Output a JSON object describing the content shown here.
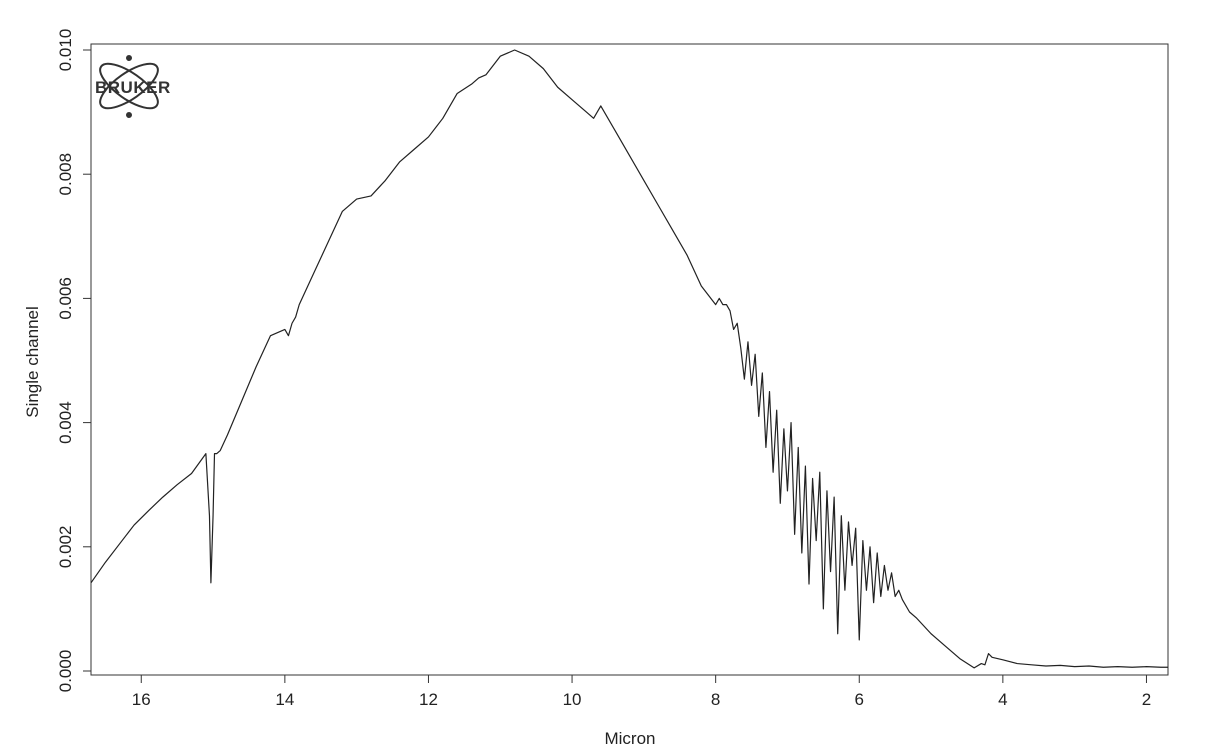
{
  "logo": {
    "text": "BRUKER"
  },
  "chart_data": {
    "type": "line",
    "title": "",
    "xlabel": "Micron",
    "ylabel": "Single channel",
    "xlim": [
      16.7,
      1.7
    ],
    "ylim": [
      0.0,
      0.01
    ],
    "x_reversed": true,
    "x_ticks": [
      16,
      14,
      12,
      10,
      8,
      6,
      4,
      2
    ],
    "x_tick_labels": [
      "16",
      "14",
      "12",
      "10",
      "8",
      "6",
      "4",
      "2"
    ],
    "y_ticks": [
      0.0,
      0.002,
      0.004,
      0.006,
      0.008,
      0.01
    ],
    "y_tick_labels": [
      "0.000",
      "0.002",
      "0.004",
      "0.006",
      "0.008",
      "0.010"
    ],
    "grid": false,
    "legend": "none",
    "line_color": "#222222",
    "series": [
      {
        "x": [
          16.7,
          16.5,
          16.3,
          16.1,
          15.9,
          15.7,
          15.5,
          15.3,
          15.1,
          15.05,
          15.03,
          15.0,
          14.98,
          14.95,
          14.9,
          14.8,
          14.6,
          14.4,
          14.2,
          14.0,
          13.95,
          13.9,
          13.85,
          13.8,
          13.6,
          13.4,
          13.2,
          13.0,
          12.8,
          12.6,
          12.4,
          12.2,
          12.0,
          11.8,
          11.6,
          11.4,
          11.3,
          11.2,
          11.0,
          10.8,
          10.6,
          10.4,
          10.2,
          10.0,
          9.8,
          9.7,
          9.6,
          9.4,
          9.2,
          9.0,
          8.8,
          8.6,
          8.4,
          8.2,
          8.0,
          7.95,
          7.9,
          7.85,
          7.8,
          7.75,
          7.7,
          7.65,
          7.6,
          7.55,
          7.5,
          7.45,
          7.4,
          7.35,
          7.3,
          7.25,
          7.2,
          7.15,
          7.1,
          7.05,
          7.0,
          6.95,
          6.9,
          6.85,
          6.8,
          6.75,
          6.7,
          6.65,
          6.6,
          6.55,
          6.5,
          6.45,
          6.4,
          6.35,
          6.3,
          6.25,
          6.2,
          6.15,
          6.1,
          6.05,
          6.0,
          5.95,
          5.9,
          5.85,
          5.8,
          5.75,
          5.7,
          5.65,
          5.6,
          5.55,
          5.5,
          5.45,
          5.4,
          5.3,
          5.2,
          5.0,
          4.8,
          4.6,
          4.4,
          4.3,
          4.25,
          4.2,
          4.15,
          4.0,
          3.8,
          3.6,
          3.4,
          3.2,
          3.0,
          2.8,
          2.6,
          2.4,
          2.2,
          2.0,
          1.8,
          1.7
        ],
        "y": [
          0.00142,
          0.00175,
          0.00205,
          0.00235,
          0.00258,
          0.0028,
          0.003,
          0.00318,
          0.0035,
          0.0025,
          0.00142,
          0.0025,
          0.0035,
          0.0035,
          0.00355,
          0.0038,
          0.00435,
          0.0049,
          0.0054,
          0.0055,
          0.0054,
          0.0056,
          0.0057,
          0.0059,
          0.0064,
          0.0069,
          0.0074,
          0.0076,
          0.00765,
          0.0079,
          0.0082,
          0.0084,
          0.0086,
          0.0089,
          0.0093,
          0.00945,
          0.00955,
          0.0096,
          0.0099,
          0.01,
          0.0099,
          0.0097,
          0.0094,
          0.0092,
          0.009,
          0.0089,
          0.0091,
          0.0087,
          0.0083,
          0.0079,
          0.0075,
          0.0071,
          0.0067,
          0.0062,
          0.0059,
          0.006,
          0.0059,
          0.0059,
          0.0058,
          0.0055,
          0.0056,
          0.0052,
          0.0047,
          0.0053,
          0.0046,
          0.0051,
          0.0041,
          0.0048,
          0.0036,
          0.0045,
          0.0032,
          0.0042,
          0.0027,
          0.0039,
          0.0029,
          0.004,
          0.0022,
          0.0036,
          0.0019,
          0.0033,
          0.0014,
          0.0031,
          0.0021,
          0.0032,
          0.001,
          0.0029,
          0.0016,
          0.0028,
          0.0006,
          0.0025,
          0.0013,
          0.0024,
          0.0017,
          0.0023,
          0.0005,
          0.0021,
          0.0013,
          0.002,
          0.0011,
          0.0019,
          0.0012,
          0.0017,
          0.0013,
          0.00158,
          0.0012,
          0.0013,
          0.00115,
          0.00095,
          0.00085,
          0.0006,
          0.0004,
          0.0002,
          5e-05,
          0.00012,
          0.0001,
          0.00028,
          0.00022,
          0.00018,
          0.00012,
          0.0001,
          8e-05,
          9e-05,
          7e-05,
          8e-05,
          6e-05,
          7e-05,
          6e-05,
          7e-05,
          6e-05,
          6e-05
        ]
      }
    ]
  }
}
